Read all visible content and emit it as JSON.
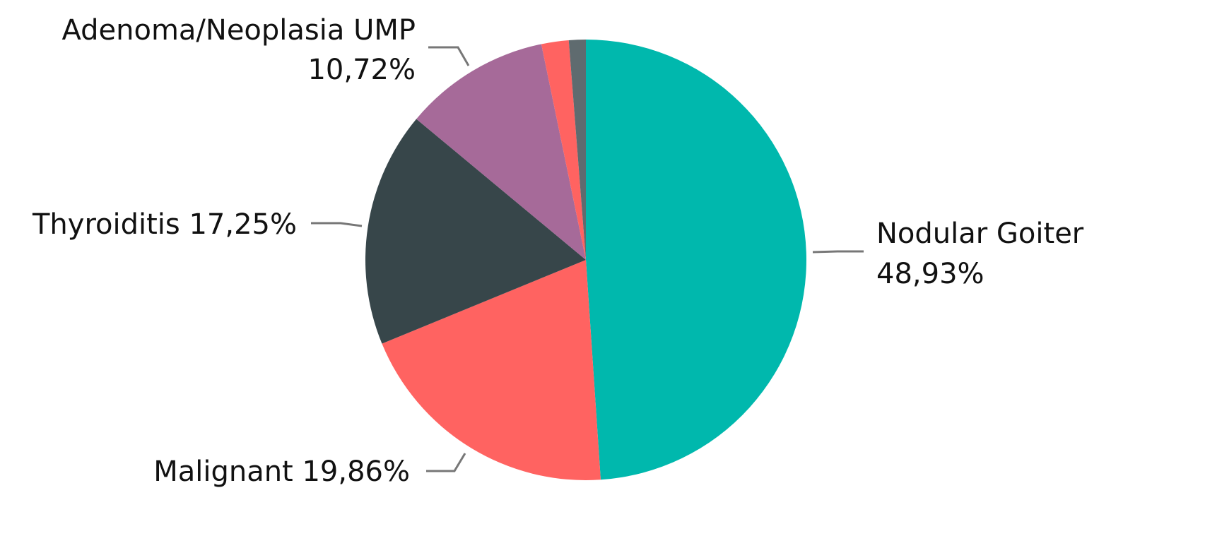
{
  "chart_data": {
    "type": "pie",
    "categories": [
      "Nodular Goiter",
      "Malignant",
      "Thyroiditis",
      "Adenoma/Neoplasia UMP",
      null,
      null
    ],
    "values": [
      48.93,
      19.86,
      17.25,
      10.72,
      2.0,
      1.24
    ],
    "value_labels": [
      "48,93%",
      "19,86%",
      "17,25%",
      "10,72%",
      null,
      null
    ],
    "colors": [
      "#00b8ad",
      "#ff6361",
      "#37464a",
      "#a66a99",
      "#ff6361",
      "#5f6b6f"
    ],
    "start_angle": 0,
    "direction": "clockwise"
  }
}
